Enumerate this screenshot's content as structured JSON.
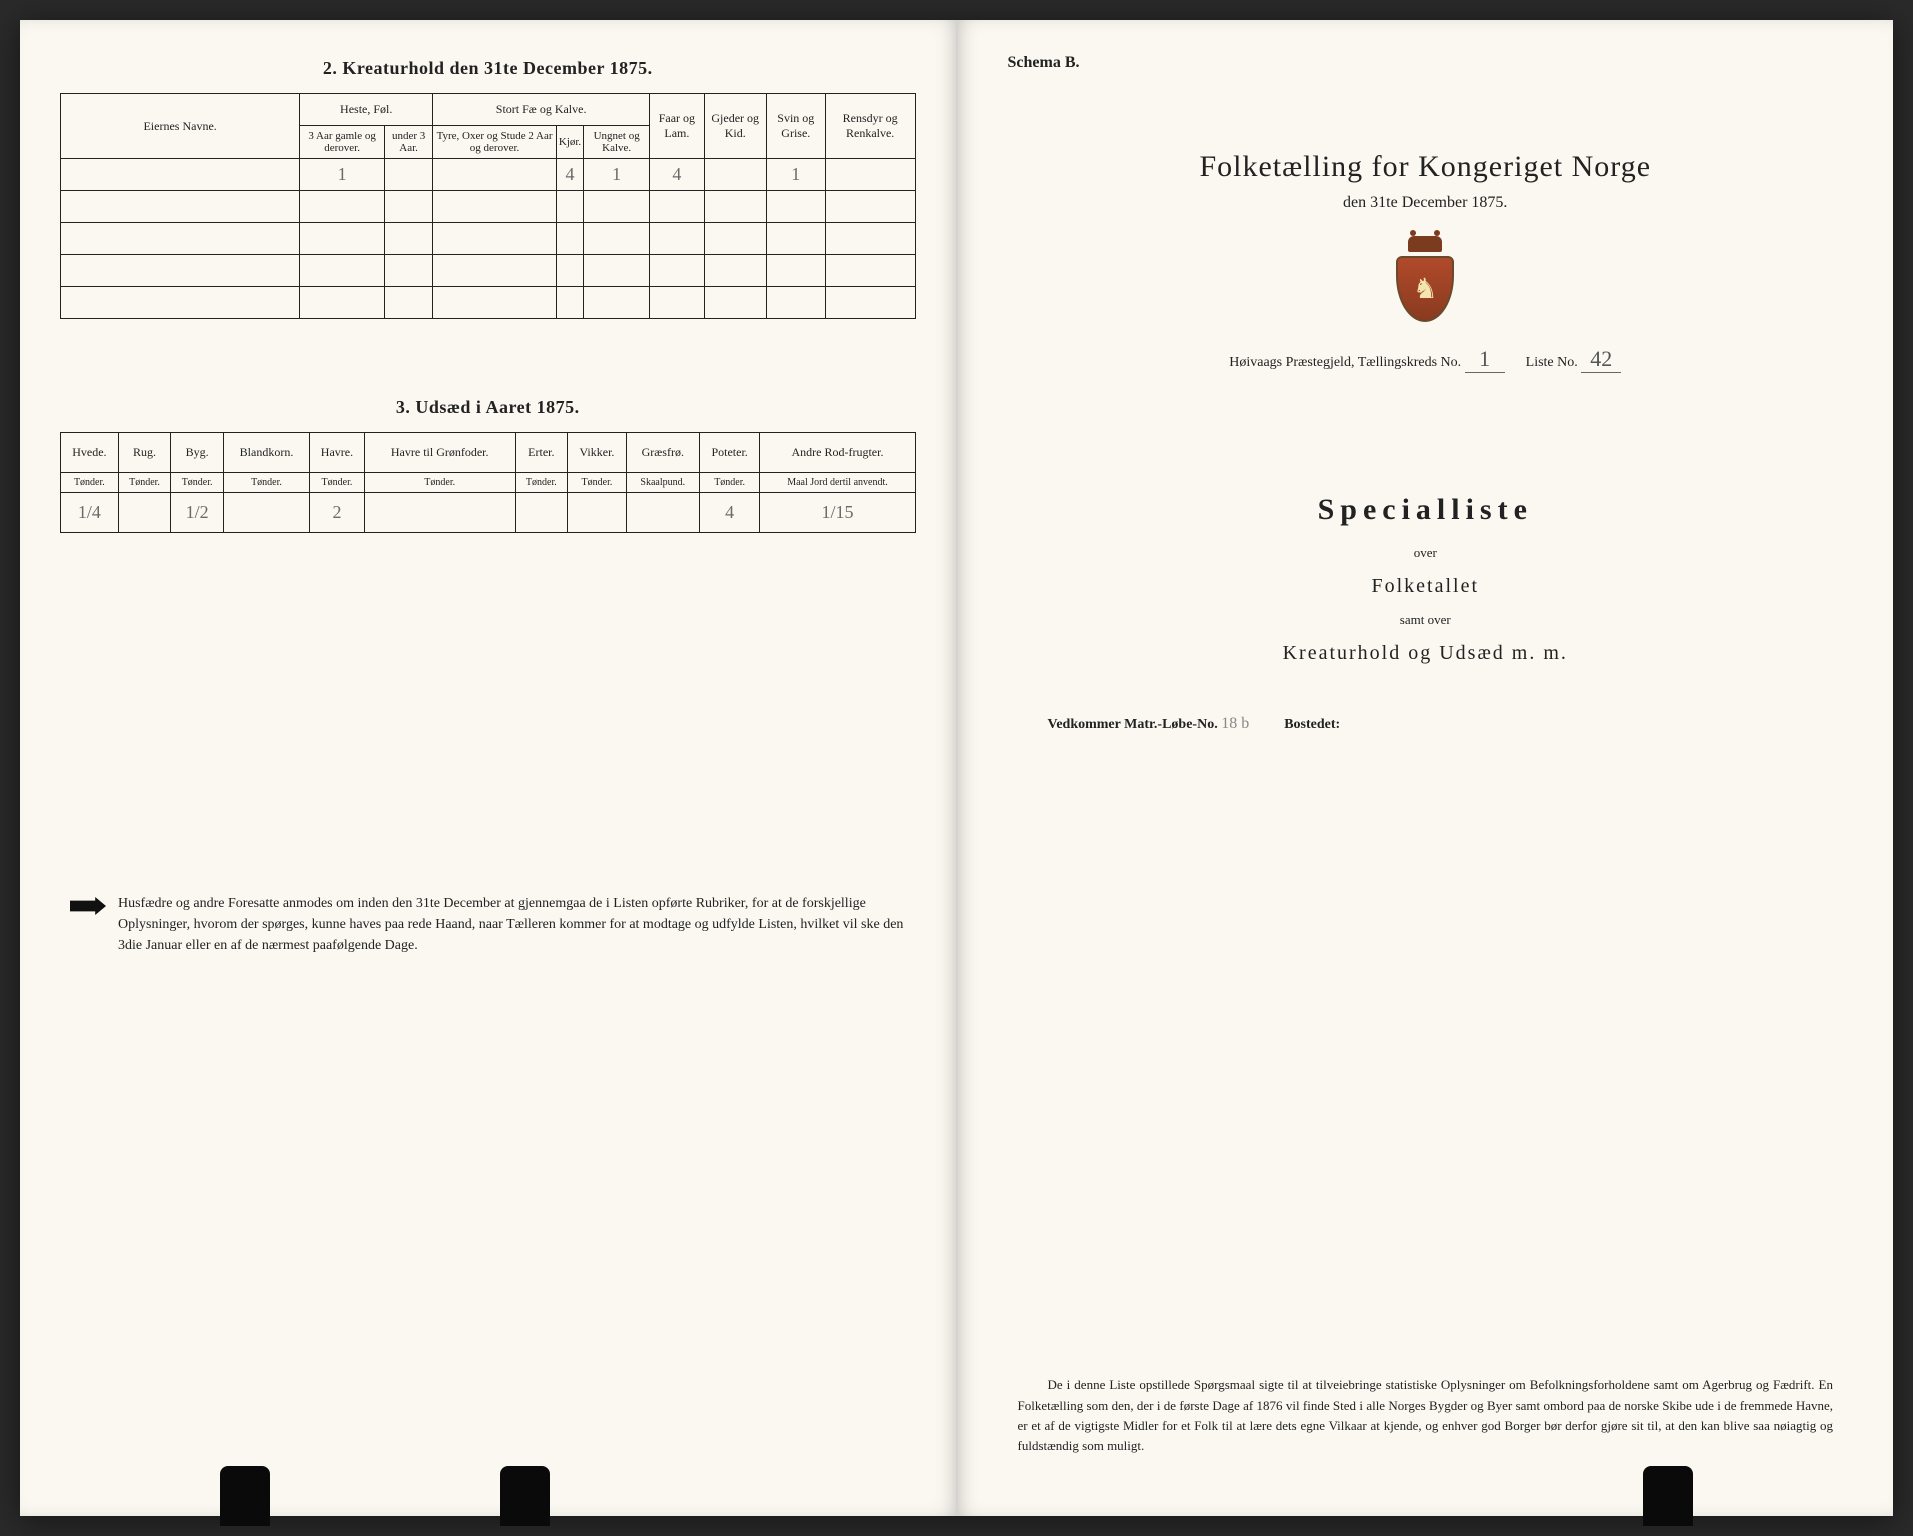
{
  "left": {
    "section2_title": "2. Kreaturhold den 31te December 1875.",
    "table1": {
      "headers": {
        "eier": "Eiernes Navne.",
        "heste": "Heste, Føl.",
        "heste_sub1": "3 Aar gamle og derover.",
        "heste_sub2": "under 3 Aar.",
        "stort": "Stort Fæ og Kalve.",
        "stort_sub1": "Tyre, Oxer og Stude 2 Aar og derover.",
        "stort_sub2": "Kjør.",
        "stort_sub3": "Ungnet og Kalve.",
        "faar": "Faar og Lam.",
        "gjeder": "Gjeder og Kid.",
        "svin": "Svin og Grise.",
        "rensdyr": "Rensdyr og Renkalve."
      },
      "row": {
        "eier": "",
        "heste1": "1",
        "heste2": "",
        "stort1": "",
        "stort2": "4",
        "stort3": "1",
        "faar": "4",
        "gjeder": "",
        "svin": "1",
        "rensdyr": ""
      }
    },
    "section3_title": "3. Udsæd i Aaret 1875.",
    "table2": {
      "headers": {
        "hvede": "Hvede.",
        "rug": "Rug.",
        "byg": "Byg.",
        "blandkorn": "Blandkorn.",
        "havre": "Havre.",
        "havre_gron": "Havre til Grønfoder.",
        "erter": "Erter.",
        "vikker": "Vikker.",
        "graesfro": "Græsfrø.",
        "poteter": "Poteter.",
        "andre": "Andre Rod-frugter.",
        "tonder": "Tønder.",
        "skaalpund": "Skaalpund.",
        "maal": "Maal Jord dertil anvendt."
      },
      "row": {
        "hvede": "1/4",
        "rug": "",
        "byg": "1/2",
        "blandkorn": "",
        "havre": "2",
        "havre_gron": "",
        "erter": "",
        "vikker": "",
        "graesfro": "",
        "poteter": "4",
        "andre": "1/15"
      }
    },
    "footnote": "Husfædre og andre Foresatte anmodes om inden den 31te December at gjennemgaa de i Listen opførte Rubriker, for at de forskjellige Oplysninger, hvorom der spørges, kunne haves paa rede Haand, naar Tælleren kommer for at modtage og udfylde Listen, hvilket vil ske den 3die Januar eller en af de nærmest paafølgende Dage."
  },
  "right": {
    "schema": "Schema B.",
    "title": "Folketælling for Kongeriget Norge",
    "subtitle": "den 31te December 1875.",
    "kreds_prefix": "Høivaags Præstegjeld, Tællingskreds No.",
    "kreds_no": "1",
    "liste_label": "Liste No.",
    "liste_no": "42",
    "special": "Specialliste",
    "over": "over",
    "folketallet": "Folketallet",
    "samt": "samt over",
    "kreatur": "Kreaturhold og Udsæd m. m.",
    "vedk_label": "Vedkommer Matr.-Løbe-No.",
    "vedk_no": "18 b",
    "bosted_label": "Bostedet:",
    "bosted_val": "",
    "bottom": "De i denne Liste opstillede Spørgsmaal sigte til at tilveiebringe statistiske Oplysninger om Befolkningsforholdene samt om Agerbrug og Fædrift. En Folketælling som den, der i de første Dage af 1876 vil finde Sted i alle Norges Bygder og Byer samt ombord paa de norske Skibe ude i de fremmede Havne, er et af de vigtigste Midler for et Folk til at lære dets egne Vilkaar at kjende, og enhver god Borger bør derfor gjøre sit til, at den kan blive saa nøiagtig og fuldstændig som muligt."
  }
}
